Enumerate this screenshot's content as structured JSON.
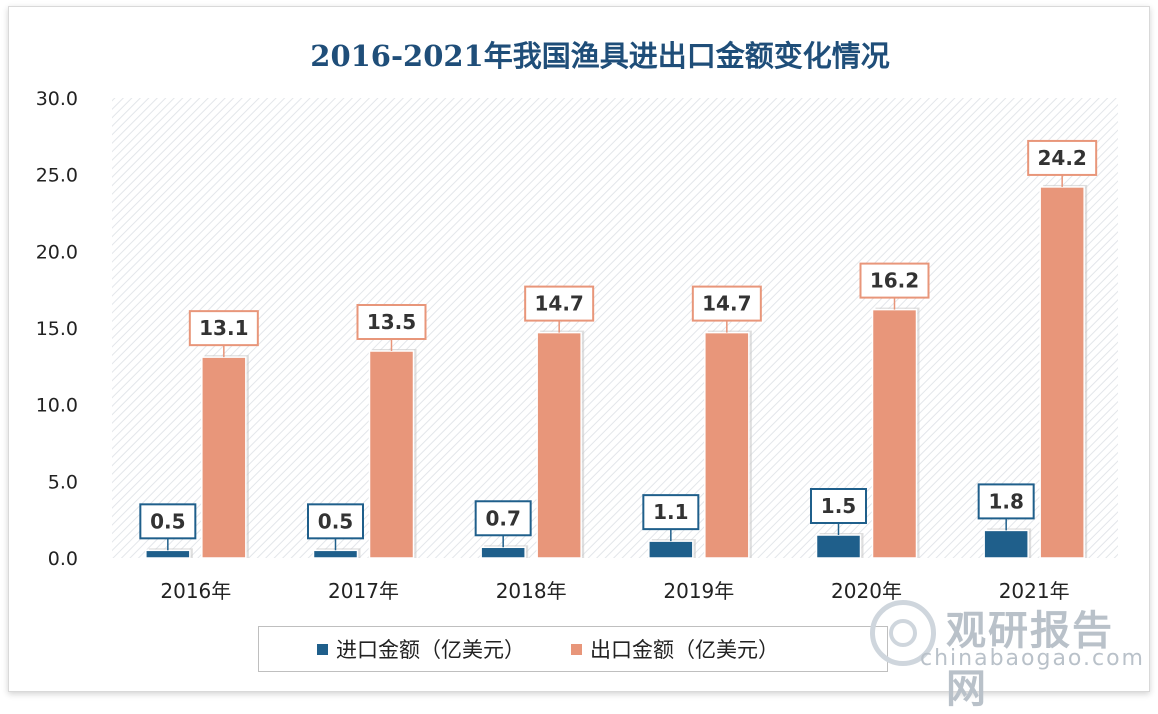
{
  "chart_data": {
    "type": "bar",
    "title": "2016-2021年我国渔具进出口金额变化情况",
    "categories": [
      "2016年",
      "2017年",
      "2018年",
      "2019年",
      "2020年",
      "2021年"
    ],
    "series": [
      {
        "name": "进口金额（亿美元）",
        "values": [
          0.5,
          0.5,
          0.7,
          1.1,
          1.5,
          1.8
        ],
        "color": "#1f5f8b"
      },
      {
        "name": "出口金额（亿美元）",
        "values": [
          13.1,
          13.5,
          14.7,
          14.7,
          16.2,
          24.2
        ],
        "color": "#e8967a"
      }
    ],
    "ylim": [
      0,
      30
    ],
    "yticks": [
      "0.0",
      "5.0",
      "10.0",
      "15.0",
      "20.0",
      "25.0",
      "30.0"
    ],
    "grid": false,
    "legend_position": "bottom"
  },
  "watermark": {
    "name_cn": "观研报告网",
    "domain": "chinabaogao.com"
  },
  "colors": {
    "title": "#1f4e79",
    "import_label_border": "#1f5f8b",
    "export_label_border": "#e8967a"
  }
}
